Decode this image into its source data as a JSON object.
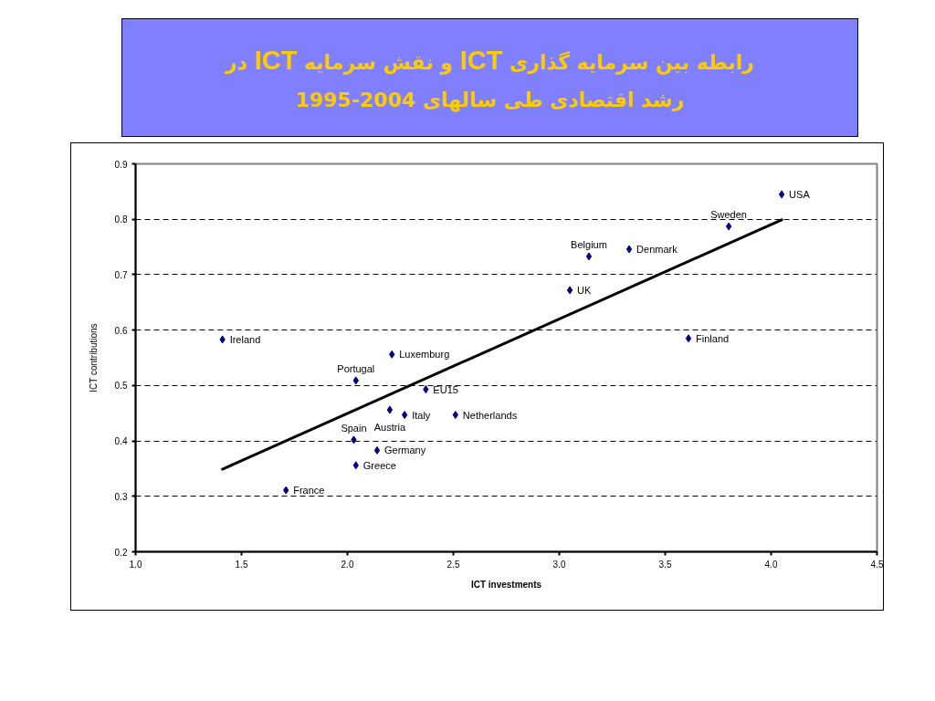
{
  "chart_data": {
    "type": "scatter",
    "title": "رابطه بین سرمایه گذاری ICT و نقش سرمایه ICT در رشد اقتصادی طی سالهای 1995-2004",
    "xlabel": "ICT investments",
    "ylabel": "ICT contributions",
    "xlim": [
      1.0,
      4.5
    ],
    "ylim": [
      0.2,
      0.9
    ],
    "xticks": [
      {
        "value": 1.0,
        "label": "1.0"
      },
      1.5,
      {
        "value": 2.0,
        "label": "2.0"
      },
      2.5,
      {
        "value": 3.0,
        "label": "3.0"
      },
      3.5,
      {
        "value": 4.0,
        "label": "4.0"
      },
      4.5
    ],
    "yticks": [
      0.2,
      0.3,
      0.4,
      0.5,
      0.6,
      0.7,
      0.8,
      0.9
    ],
    "grid": "y",
    "series": [
      {
        "color": "#000080",
        "marker": "diamond",
        "x": [
          1.41,
          1.71,
          2.03,
          2.04,
          2.04,
          2.14,
          2.2,
          2.21,
          2.27,
          2.37,
          2.51,
          3.05,
          3.14,
          3.33,
          3.61,
          3.8,
          4.05
        ],
        "values": [
          0.583,
          0.311,
          0.402,
          0.509,
          0.356,
          0.383,
          0.456,
          0.556,
          0.447,
          0.493,
          0.447,
          0.672,
          0.733,
          0.746,
          0.585,
          0.787,
          0.845
        ]
      },
      {
        "type": "line",
        "color": "#000000",
        "line_style": "solid",
        "x": [
          1.41,
          4.05
        ],
        "values": [
          0.349,
          0.799
        ]
      }
    ],
    "annotations": [
      {
        "text": "Ireland",
        "x": 1.41,
        "y": 0.583
      },
      {
        "text": "France",
        "x": 1.71,
        "y": 0.311
      },
      {
        "text": "Spain",
        "x": 2.03,
        "y": 0.402
      },
      {
        "text": "Portugal",
        "x": 2.04,
        "y": 0.509
      },
      {
        "text": "Greece",
        "x": 2.04,
        "y": 0.356
      },
      {
        "text": "Germany",
        "x": 2.14,
        "y": 0.383
      },
      {
        "text": "Austria",
        "x": 2.2,
        "y": 0.456
      },
      {
        "text": "Luxemburg",
        "x": 2.21,
        "y": 0.556
      },
      {
        "text": "Italy",
        "x": 2.27,
        "y": 0.447
      },
      {
        "text": "EU15",
        "x": 2.37,
        "y": 0.493
      },
      {
        "text": "Netherlands",
        "x": 2.51,
        "y": 0.447
      },
      {
        "text": "UK",
        "x": 3.05,
        "y": 0.672
      },
      {
        "text": "Belgium",
        "x": 3.14,
        "y": 0.733
      },
      {
        "text": "Denmark",
        "x": 3.33,
        "y": 0.746
      },
      {
        "text": "Finland",
        "x": 3.61,
        "y": 0.585
      },
      {
        "text": "Sweden",
        "x": 3.8,
        "y": 0.787
      },
      {
        "text": "USA",
        "x": 4.05,
        "y": 0.845
      }
    ]
  }
}
